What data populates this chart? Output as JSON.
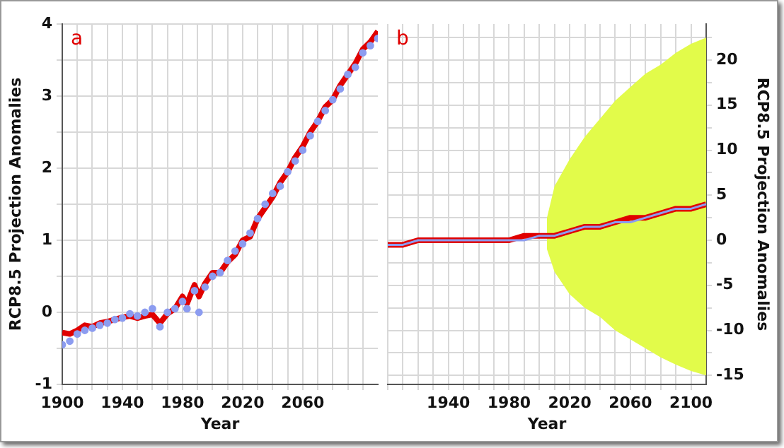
{
  "chart_data": [
    {
      "type": "line",
      "xlabel": "Year",
      "ylabel": "RCP8.5 Projection Anomalies",
      "annotations": [
        "a"
      ],
      "grid": true,
      "legend": false,
      "xlim": [
        1900,
        2110
      ],
      "ylim": [
        -1,
        4
      ],
      "xticks": [
        1900,
        {
          "value": 1910,
          "label": null
        },
        {
          "value": 1920,
          "label": null
        },
        {
          "value": 1930,
          "label": null
        },
        1940,
        {
          "value": 1950,
          "label": null
        },
        {
          "value": 1960,
          "label": null
        },
        {
          "value": 1970,
          "label": null
        },
        1980,
        {
          "value": 1990,
          "label": null
        },
        {
          "value": 2000,
          "label": null
        },
        {
          "value": 2010,
          "label": null
        },
        2020,
        {
          "value": 2030,
          "label": null
        },
        {
          "value": 2040,
          "label": null
        },
        {
          "value": 2050,
          "label": null
        },
        2060,
        {
          "value": 2070,
          "label": null
        },
        {
          "value": 2080,
          "label": null
        },
        {
          "value": 2090,
          "label": null
        },
        {
          "value": 2100,
          "label": null
        }
      ],
      "yticks": [
        -1,
        {
          "value": -0.5,
          "label": null
        },
        0,
        {
          "value": 0.5,
          "label": null
        },
        1,
        {
          "value": 1.5,
          "label": null
        },
        2,
        {
          "value": 2.5,
          "label": null
        },
        3,
        {
          "value": 3.5,
          "label": null
        },
        4
      ],
      "x": [
        1900,
        1905,
        1910,
        1915,
        1920,
        1925,
        1930,
        1935,
        1940,
        1945,
        1950,
        1955,
        1960,
        1965,
        1970,
        1975,
        1980,
        1983,
        1988,
        1991,
        1995,
        2000,
        2005,
        2010,
        2015,
        2020,
        2025,
        2030,
        2035,
        2040,
        2045,
        2050,
        2055,
        2060,
        2065,
        2070,
        2075,
        2080,
        2085,
        2090,
        2095,
        2100,
        2105,
        2110
      ],
      "series": [
        {
          "type": "scatter",
          "marker": "circle",
          "color": "#8c9cf0",
          "values": [
            -0.45,
            -0.4,
            -0.3,
            -0.25,
            -0.22,
            -0.18,
            -0.15,
            -0.1,
            -0.08,
            -0.02,
            -0.05,
            0.0,
            0.05,
            -0.2,
            0.0,
            0.05,
            0.15,
            0.05,
            0.3,
            0.0,
            0.35,
            0.5,
            0.55,
            0.72,
            0.85,
            0.95,
            1.1,
            1.3,
            1.5,
            1.65,
            1.75,
            1.95,
            2.1,
            2.25,
            2.45,
            2.65,
            2.8,
            2.95,
            3.1,
            3.3,
            3.4,
            3.6,
            3.7,
            3.8
          ]
        },
        {
          "color": "#e00000",
          "values": [
            -0.28,
            -0.3,
            -0.25,
            -0.18,
            -0.2,
            -0.15,
            -0.13,
            -0.1,
            -0.07,
            -0.05,
            -0.08,
            -0.05,
            -0.03,
            -0.15,
            -0.02,
            0.05,
            0.22,
            0.12,
            0.38,
            0.22,
            0.4,
            0.55,
            0.55,
            0.7,
            0.8,
            1.0,
            1.05,
            1.3,
            1.45,
            1.6,
            1.8,
            1.95,
            2.15,
            2.3,
            2.5,
            2.65,
            2.85,
            2.95,
            3.15,
            3.3,
            3.45,
            3.65,
            3.75,
            3.9
          ]
        }
      ]
    },
    {
      "type": "line",
      "xlabel": "Year",
      "y2label": "RCP8.5 Projection Anomalies",
      "annotations": [
        "b"
      ],
      "grid": true,
      "legend": false,
      "xlim": [
        1900,
        2110
      ],
      "y2lim": [
        -16,
        24
      ],
      "xticks": [
        {
          "value": 1900,
          "label": null
        },
        {
          "value": 1910,
          "label": null
        },
        {
          "value": 1920,
          "label": null
        },
        {
          "value": 1930,
          "label": null
        },
        1940,
        {
          "value": 1950,
          "label": null
        },
        {
          "value": 1960,
          "label": null
        },
        {
          "value": 1970,
          "label": null
        },
        1980,
        {
          "value": 1990,
          "label": null
        },
        {
          "value": 2000,
          "label": null
        },
        {
          "value": 2010,
          "label": null
        },
        2020,
        {
          "value": 2030,
          "label": null
        },
        {
          "value": 2040,
          "label": null
        },
        {
          "value": 2050,
          "label": null
        },
        2060,
        {
          "value": 2070,
          "label": null
        },
        {
          "value": 2080,
          "label": null
        },
        {
          "value": 2090,
          "label": null
        },
        2100
      ],
      "y2ticks": [
        -15,
        {
          "value": -12.5,
          "label": null
        },
        -10,
        {
          "value": -7.5,
          "label": null
        },
        -5,
        {
          "value": -2.5,
          "label": null
        },
        0,
        {
          "value": 2.5,
          "label": null
        },
        5,
        {
          "value": 7.5,
          "label": null
        },
        10,
        {
          "value": 12.5,
          "label": null
        },
        15,
        {
          "value": 17.5,
          "label": null
        },
        20,
        {
          "value": 22.5,
          "label": null
        }
      ],
      "x": [
        1900,
        1910,
        1920,
        1930,
        1940,
        1950,
        1960,
        1965,
        1970,
        1980,
        1990,
        2000,
        2005,
        2010,
        2020,
        2030,
        2040,
        2050,
        2060,
        2070,
        2080,
        2090,
        2100,
        2110
      ],
      "series": [
        {
          "axis": "y2",
          "color": "#8c9cf0",
          "values": [
            -0.5,
            -0.5,
            0,
            0,
            0,
            0,
            0,
            0,
            0,
            0,
            0,
            0.5,
            0.5,
            0.5,
            1,
            1.5,
            1.5,
            2,
            2,
            2.5,
            3,
            3.5,
            3.5,
            4
          ]
        },
        {
          "axis": "y2",
          "color": "#e00000",
          "values": [
            -0.5,
            -0.5,
            0,
            0,
            0,
            0,
            0,
            0,
            0,
            0,
            0.5,
            0.5,
            0.5,
            0.5,
            1,
            1.5,
            1.5,
            2,
            2.5,
            2.5,
            3,
            3.5,
            3.5,
            4
          ],
          "upper": [
            null,
            null,
            null,
            null,
            null,
            null,
            null,
            null,
            null,
            null,
            null,
            null,
            2.5,
            6,
            9,
            11.5,
            13.5,
            15.5,
            17,
            18.5,
            19.5,
            20.8,
            21.8,
            22.5
          ],
          "lower": [
            null,
            null,
            null,
            null,
            null,
            null,
            null,
            null,
            null,
            null,
            null,
            null,
            -1,
            -3.5,
            -6,
            -7.5,
            -8.5,
            -10,
            -11,
            -12,
            -13,
            -13.8,
            -14.5,
            -15
          ]
        }
      ]
    }
  ]
}
